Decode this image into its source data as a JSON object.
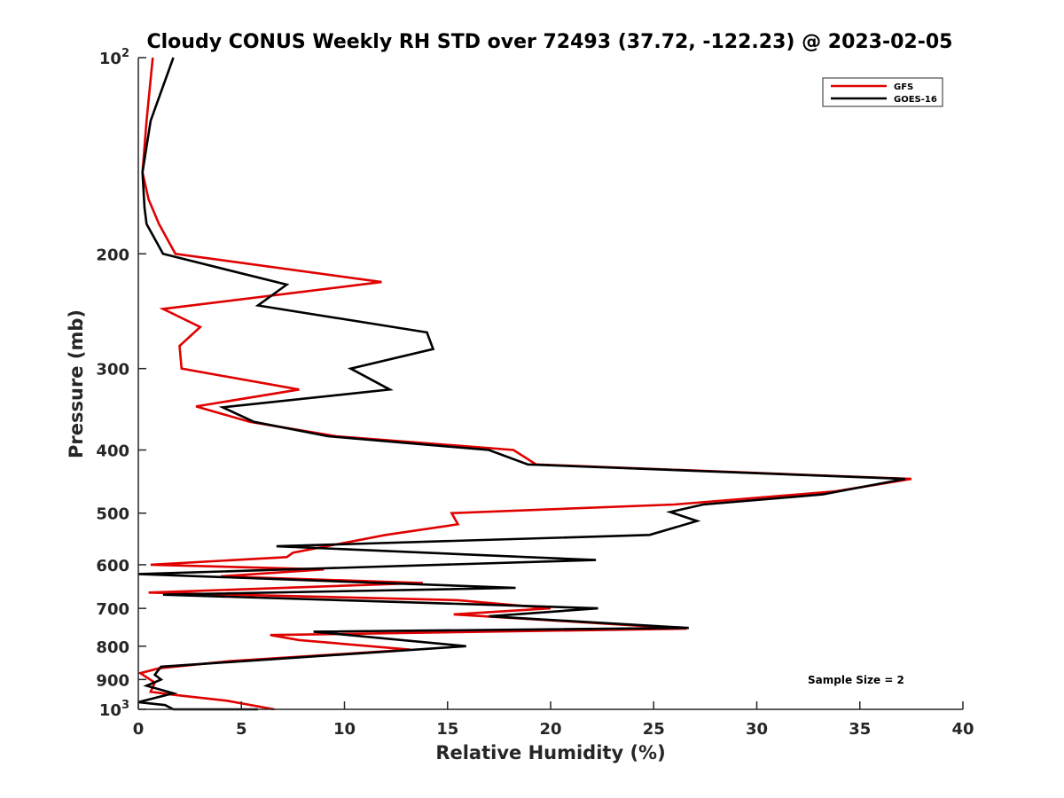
{
  "chart_data": {
    "type": "line",
    "title": "Cloudy CONUS Weekly RH STD over 72493 (37.72, -122.23) @ 2023-02-05",
    "xlabel": "Relative Humidity (%)",
    "ylabel": "Pressure (mb)",
    "xlim": [
      0,
      40
    ],
    "ylim": [
      1000,
      100
    ],
    "y_scale": "log",
    "y_reversed": true,
    "x_ticks": [
      "0",
      "5",
      "10",
      "15",
      "20",
      "25",
      "30",
      "35",
      "40"
    ],
    "y_ticks": [
      {
        "value": 100,
        "base": "10",
        "exp": "2"
      },
      {
        "value": 200,
        "label": "200"
      },
      {
        "value": 300,
        "label": "300"
      },
      {
        "value": 400,
        "label": "400"
      },
      {
        "value": 500,
        "label": "500"
      },
      {
        "value": 600,
        "label": "600"
      },
      {
        "value": 700,
        "label": "700"
      },
      {
        "value": 800,
        "label": "800"
      },
      {
        "value": 900,
        "label": "900"
      },
      {
        "value": 1000,
        "base": "10",
        "exp": "3"
      }
    ],
    "grid": false,
    "legend_position": "top-right",
    "annotation": "Sample Size = 2",
    "series": [
      {
        "name": "GFS",
        "color": "#e00000",
        "points": [
          [
            0.7,
            100
          ],
          [
            0.4,
            125
          ],
          [
            0.2,
            150
          ],
          [
            0.5,
            165
          ],
          [
            1.0,
            180
          ],
          [
            1.8,
            200
          ],
          [
            11.8,
            221
          ],
          [
            1.2,
            243
          ],
          [
            3.0,
            259
          ],
          [
            2.0,
            277
          ],
          [
            2.1,
            300
          ],
          [
            7.8,
            323
          ],
          [
            2.8,
            343
          ],
          [
            5.4,
            362
          ],
          [
            9.6,
            381
          ],
          [
            18.2,
            400
          ],
          [
            19.3,
            421
          ],
          [
            37.5,
            443
          ],
          [
            33.8,
            463
          ],
          [
            26.0,
            485
          ],
          [
            15.2,
            500
          ],
          [
            15.5,
            520
          ],
          [
            12.0,
            540
          ],
          [
            7.5,
            575
          ],
          [
            7.2,
            584
          ],
          [
            0.6,
            600
          ],
          [
            9.0,
            610
          ],
          [
            4.0,
            625
          ],
          [
            13.8,
            640
          ],
          [
            0.5,
            662
          ],
          [
            15.5,
            680
          ],
          [
            20.0,
            700
          ],
          [
            15.3,
            715
          ],
          [
            26.6,
            752
          ],
          [
            6.4,
            769
          ],
          [
            7.8,
            783
          ],
          [
            13.2,
            810
          ],
          [
            4.5,
            843
          ],
          [
            1.0,
            865
          ],
          [
            0.1,
            880
          ],
          [
            0.8,
            910
          ],
          [
            0.6,
            940
          ],
          [
            1.7,
            950
          ],
          [
            4.3,
            970
          ],
          [
            6.6,
            1000
          ]
        ]
      },
      {
        "name": "GOES-16",
        "color": "#000000",
        "points": [
          [
            1.7,
            100
          ],
          [
            0.6,
            125
          ],
          [
            0.2,
            150
          ],
          [
            0.3,
            170
          ],
          [
            0.4,
            180
          ],
          [
            1.2,
            200
          ],
          [
            7.2,
            223
          ],
          [
            5.8,
            240
          ],
          [
            14.0,
            264
          ],
          [
            14.3,
            280
          ],
          [
            10.3,
            300
          ],
          [
            12.2,
            323
          ],
          [
            4.1,
            344
          ],
          [
            5.6,
            362
          ],
          [
            9.2,
            381
          ],
          [
            17.0,
            400
          ],
          [
            18.9,
            421
          ],
          [
            37.2,
            443
          ],
          [
            33.2,
            468
          ],
          [
            27.4,
            485
          ],
          [
            25.8,
            498
          ],
          [
            27.1,
            514
          ],
          [
            24.8,
            540
          ],
          [
            6.7,
            562
          ],
          [
            22.2,
            590
          ],
          [
            0.0,
            620
          ],
          [
            18.3,
            651
          ],
          [
            1.2,
            667
          ],
          [
            16.3,
            690
          ],
          [
            22.3,
            700
          ],
          [
            17.0,
            720
          ],
          [
            26.7,
            750
          ],
          [
            8.5,
            760
          ],
          [
            15.9,
            800
          ],
          [
            1.1,
            860
          ],
          [
            0.8,
            885
          ],
          [
            1.1,
            900
          ],
          [
            0.4,
            920
          ],
          [
            1.7,
            945
          ],
          [
            0.0,
            975
          ],
          [
            1.3,
            985
          ],
          [
            1.7,
            1000
          ],
          [
            5.8,
            1000
          ]
        ]
      }
    ]
  }
}
